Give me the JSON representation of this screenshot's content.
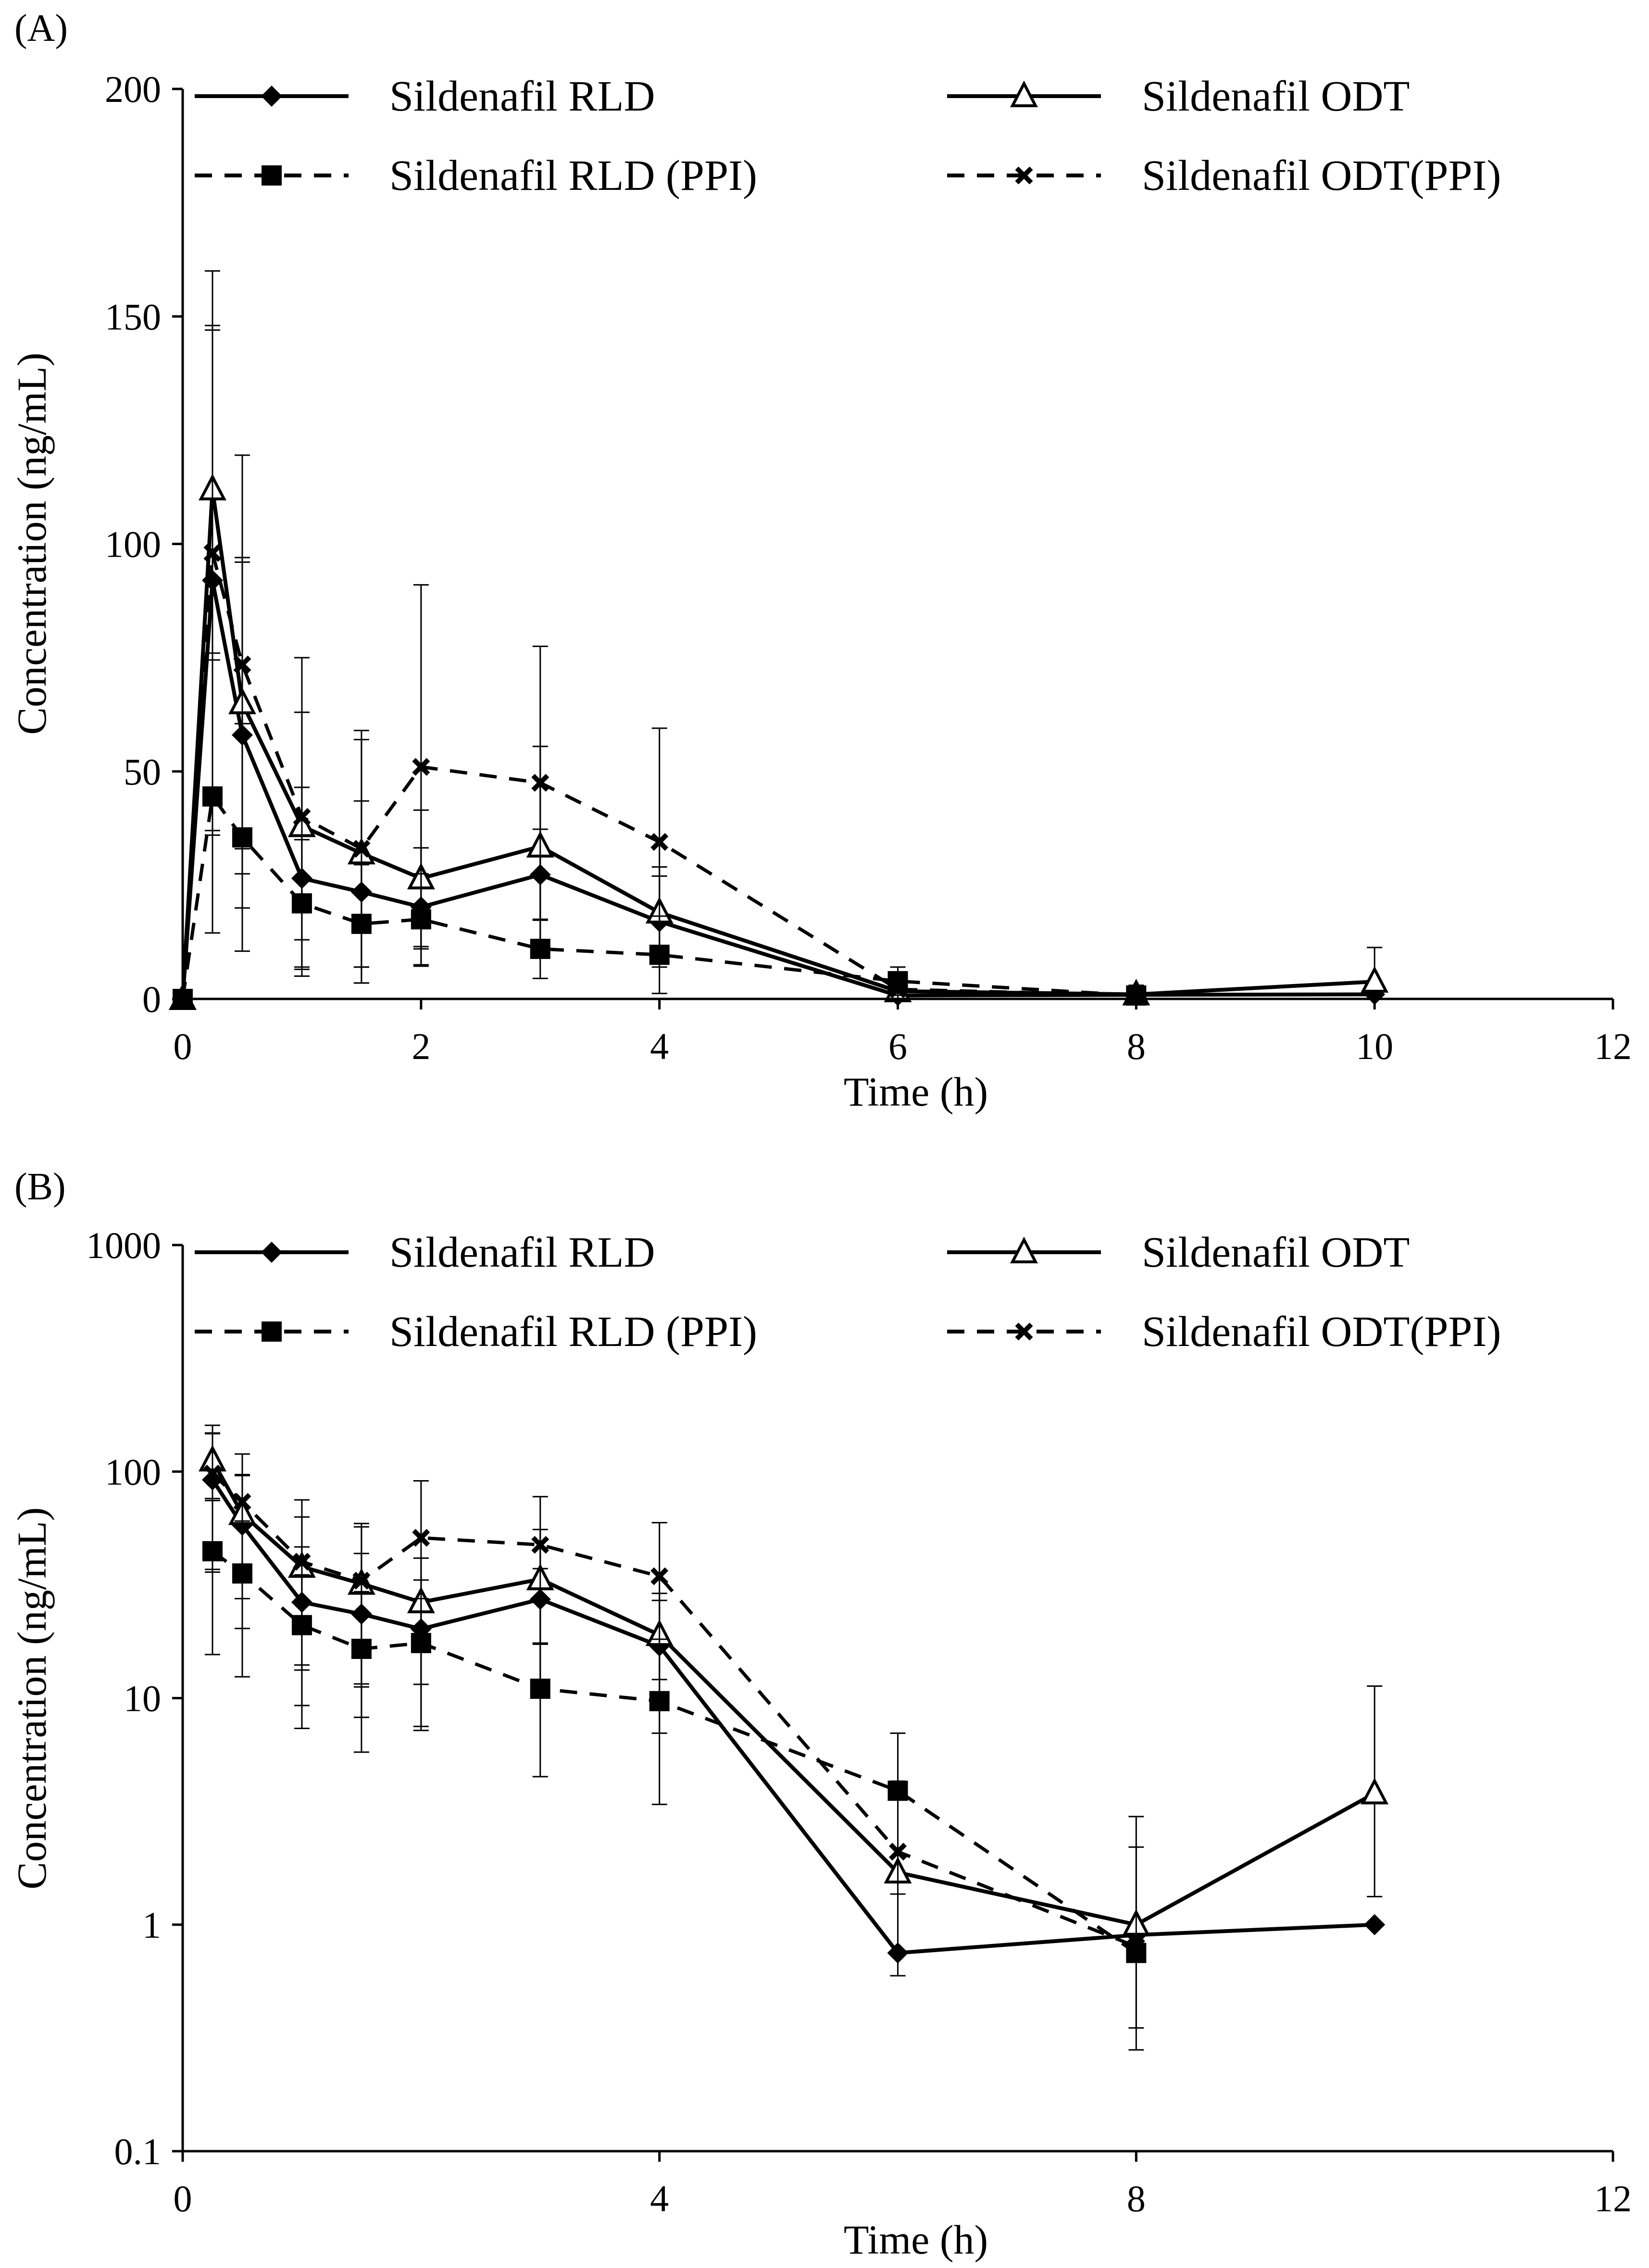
{
  "chart_data": [
    {
      "panel_label": "(A)",
      "type": "line",
      "scale": "linear",
      "xlabel": "Time (h)",
      "ylabel": "Concentration (ng/mL)",
      "xlim": [
        0,
        12
      ],
      "ylim": [
        0,
        200
      ],
      "xticks": [
        0,
        2,
        4,
        6,
        8,
        10,
        12
      ],
      "yticks": [
        0,
        50,
        100,
        150,
        200
      ],
      "xtick_labels": [
        "0",
        "2",
        "4",
        "6",
        "8",
        "10",
        "12"
      ],
      "ytick_labels": [
        "0",
        "50",
        "100",
        "150",
        "200"
      ],
      "legend_position": "top",
      "series": [
        {
          "name": "Sildenafil RLD",
          "marker": "diamond",
          "dashed": false,
          "x": [
            0,
            0.25,
            0.5,
            1,
            1.5,
            2,
            3,
            4,
            6,
            8,
            10
          ],
          "values": [
            0,
            92,
            58,
            26.5,
            23.5,
            20.2,
            27.3,
            17,
            0.75,
            0.9,
            1
          ],
          "err": [
            0,
            55,
            38,
            20,
            20,
            13,
            10,
            10,
            0,
            0,
            0
          ]
        },
        {
          "name": "Sildenafil ODT",
          "marker": "triangle",
          "dashed": false,
          "x": [
            0,
            0.25,
            0.5,
            1,
            1.5,
            2,
            3,
            4,
            6,
            8,
            10
          ],
          "values": [
            0,
            112,
            65,
            38,
            32,
            26.5,
            33.5,
            19,
            1.7,
            1,
            3.8
          ],
          "err": [
            0,
            36,
            32,
            25,
            25,
            15,
            22,
            10,
            2.5,
            2,
            7.5
          ]
        },
        {
          "name": "Sildenafil RLD (PPI)",
          "marker": "square",
          "dashed": true,
          "x": [
            0,
            0.25,
            0.5,
            1,
            1.5,
            2,
            3,
            4,
            6,
            8
          ],
          "values": [
            0,
            44.5,
            35.5,
            21,
            16.5,
            17.5,
            11,
            9.7,
            3.9,
            0.75
          ],
          "err": [
            0,
            30,
            25,
            14,
            13,
            10,
            6.5,
            8.5,
            3.1,
            0
          ]
        },
        {
          "name": "Sildenafil ODT(PPI)",
          "marker": "x",
          "dashed": true,
          "x": [
            0,
            0.25,
            0.5,
            1,
            1.5,
            2,
            3,
            4,
            6,
            8
          ],
          "values": [
            0,
            98,
            73.5,
            40,
            33,
            51,
            47.5,
            34.5,
            2.1,
            0.8
          ],
          "err": [
            0,
            62,
            46,
            35,
            26,
            40,
            30,
            25,
            2.2,
            1.4
          ]
        }
      ]
    },
    {
      "panel_label": "(B)",
      "type": "line",
      "scale": "log",
      "xlabel": "Time (h)",
      "ylabel": "Concentration (ng/mL)",
      "xlim": [
        0,
        12
      ],
      "ylim": [
        0.1,
        1000
      ],
      "xticks": [
        0,
        4,
        8,
        12
      ],
      "yticks": [
        0.1,
        1,
        10,
        100,
        1000
      ],
      "xtick_labels": [
        "0",
        "4",
        "8",
        "12"
      ],
      "ytick_labels": [
        "0.1",
        "1",
        "10",
        "100",
        "1000"
      ],
      "legend_position": "top",
      "series": [
        {
          "name": "Sildenafil RLD",
          "marker": "diamond",
          "dashed": false,
          "x": [
            0.25,
            0.5,
            1,
            1.5,
            2,
            3,
            4,
            6,
            8,
            10
          ],
          "values": [
            92,
            58,
            26.5,
            23.5,
            20.2,
            27.3,
            17,
            0.75,
            0.9,
            1
          ],
          "err": [
            55,
            38,
            20,
            20,
            13,
            10,
            10,
            0,
            0,
            0
          ]
        },
        {
          "name": "Sildenafil ODT",
          "marker": "triangle",
          "dashed": false,
          "x": [
            0.25,
            0.5,
            1,
            1.5,
            2,
            3,
            4,
            6,
            8,
            10
          ],
          "values": [
            112,
            65,
            38,
            32,
            26.5,
            33.5,
            19,
            1.7,
            1,
            3.8
          ],
          "err": [
            36,
            32,
            25,
            25,
            15,
            22,
            10,
            2.5,
            2,
            7.5
          ]
        },
        {
          "name": "Sildenafil RLD (PPI)",
          "marker": "square",
          "dashed": true,
          "x": [
            0.25,
            0.5,
            1,
            1.5,
            2,
            3,
            4,
            6,
            8
          ],
          "values": [
            44.5,
            35.5,
            21,
            16.5,
            17.5,
            11,
            9.7,
            3.9,
            0.75
          ],
          "err": [
            30,
            25,
            14,
            13,
            10,
            6.5,
            8.5,
            3.1,
            0
          ]
        },
        {
          "name": "Sildenafil ODT(PPI)",
          "marker": "x",
          "dashed": true,
          "x": [
            0.25,
            0.5,
            1,
            1.5,
            2,
            3,
            4,
            6,
            8
          ],
          "values": [
            98,
            73.5,
            40,
            33,
            51,
            47.5,
            34.5,
            2.1,
            0.8
          ],
          "err": [
            62,
            46,
            35,
            26,
            40,
            30,
            25,
            2.2,
            1.4
          ]
        }
      ]
    }
  ]
}
